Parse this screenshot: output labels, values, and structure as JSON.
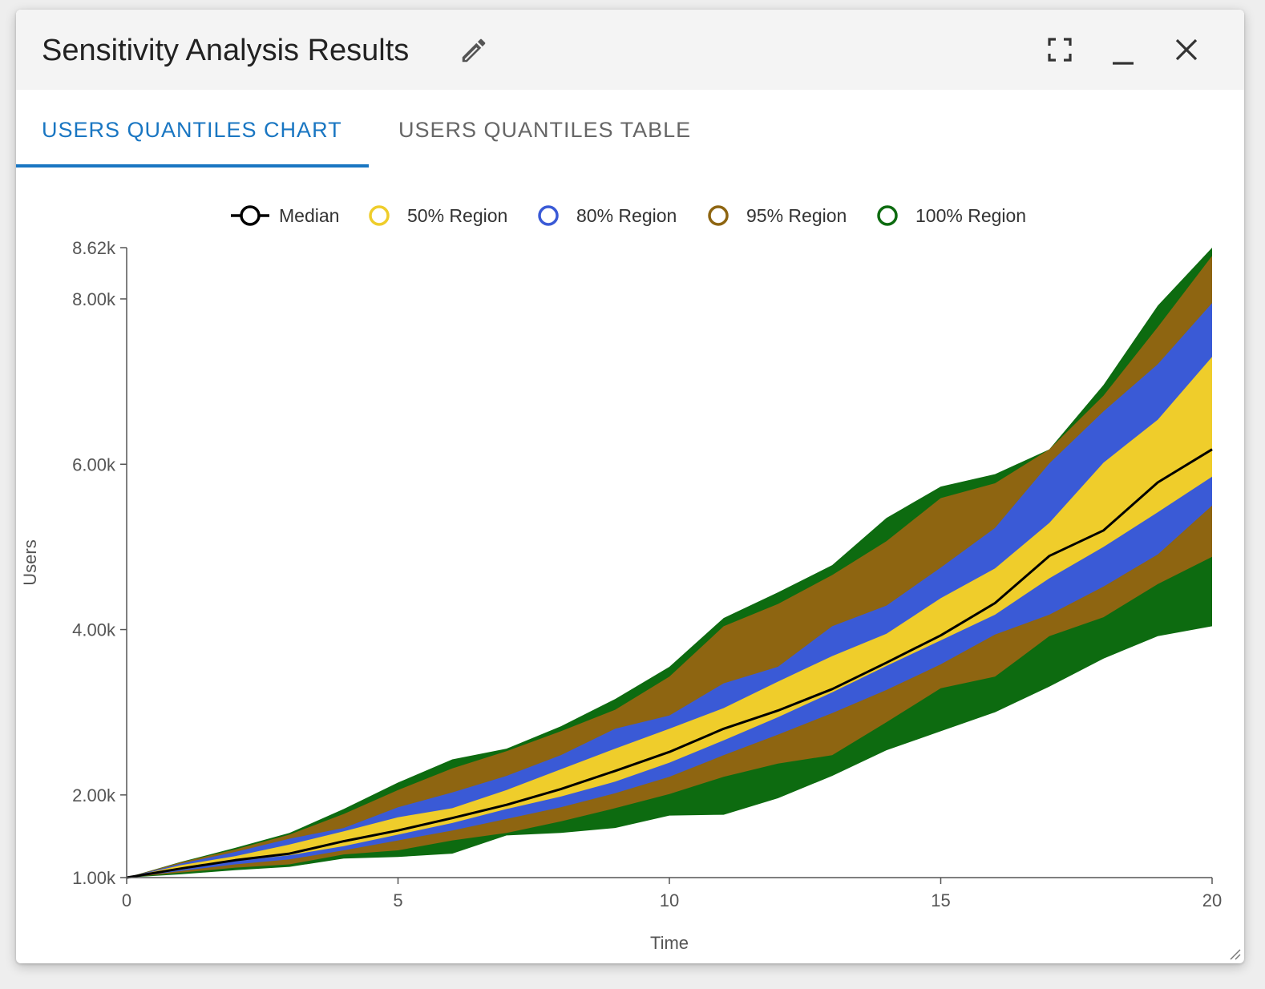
{
  "dialog": {
    "title": "Sensitivity Analysis Results",
    "icons": {
      "edit": "pencil-icon",
      "fullscreen": "fullscreen-icon",
      "minimize": "minimize-icon",
      "close": "close-icon",
      "resize": "resize-grip-icon"
    }
  },
  "tabs": [
    {
      "label": "USERS QUANTILES CHART",
      "active": true
    },
    {
      "label": "USERS QUANTILES TABLE",
      "active": false
    }
  ],
  "colors": {
    "accent": "#1976c2",
    "median": "#000000",
    "region50": "#efcd2b",
    "region80": "#3a5ad6",
    "region95": "#8e6511",
    "region100": "#0d6b10"
  },
  "chart_data": {
    "type": "area",
    "xlabel": "Time",
    "ylabel": "Users",
    "xlim": [
      0,
      20
    ],
    "ylim": [
      1000,
      8620
    ],
    "xticks": [
      0,
      5,
      10,
      15,
      20
    ],
    "yticks": [
      1000,
      2000,
      4000,
      6000,
      8000,
      8620
    ],
    "ytick_labels": [
      "1.00k",
      "2.00k",
      "4.00k",
      "6.00k",
      "8.00k",
      "8.62k"
    ],
    "grid": false,
    "legend_position": "top-center",
    "legend": [
      "Median",
      "50% Region",
      "80% Region",
      "95% Region",
      "100% Region"
    ],
    "x": [
      0,
      1,
      2,
      3,
      4,
      5,
      6,
      7,
      8,
      9,
      10,
      11,
      12,
      13,
      14,
      15,
      16,
      17,
      18,
      19,
      20
    ],
    "median": [
      1000,
      1110,
      1210,
      1290,
      1440,
      1570,
      1720,
      1880,
      2070,
      2290,
      2520,
      2800,
      3020,
      3280,
      3600,
      3930,
      4320,
      4890,
      5200,
      5780,
      6180
    ],
    "bands": [
      {
        "name": "100% Region",
        "lower": [
          1000,
          1040,
          1090,
          1130,
          1230,
          1250,
          1290,
          1510,
          1540,
          1600,
          1750,
          1760,
          1960,
          2230,
          2540,
          2770,
          3000,
          3310,
          3650,
          3920,
          4040
        ],
        "upper": [
          1000,
          1190,
          1360,
          1540,
          1830,
          2150,
          2430,
          2560,
          2830,
          3160,
          3550,
          4140,
          4450,
          4780,
          5350,
          5730,
          5880,
          6180,
          6960,
          7920,
          8620
        ]
      },
      {
        "name": "95% Region",
        "lower": [
          1000,
          1060,
          1120,
          1160,
          1280,
          1330,
          1450,
          1540,
          1680,
          1840,
          2010,
          2220,
          2380,
          2480,
          2880,
          3290,
          3430,
          3920,
          4150,
          4550,
          4880
        ]
      },
      {
        "name": "80% Region",
        "lower": [
          1000,
          1080,
          1160,
          1220,
          1330,
          1450,
          1570,
          1710,
          1850,
          2020,
          2220,
          2480,
          2730,
          2990,
          3270,
          3580,
          3940,
          4180,
          4520,
          4910,
          5500
        ],
        "upper": [
          1000,
          1170,
          1310,
          1470,
          1600,
          1850,
          2030,
          2230,
          2480,
          2800,
          2960,
          3350,
          3550,
          4040,
          4290,
          4750,
          5230,
          6010,
          6640,
          7210,
          7950
        ]
      },
      {
        "name": "50% Region",
        "lower": [
          1000,
          1095,
          1200,
          1270,
          1380,
          1520,
          1660,
          1830,
          1980,
          2160,
          2390,
          2660,
          2940,
          3240,
          3560,
          3870,
          4180,
          4620,
          5000,
          5420,
          5850
        ],
        "upper": [
          1000,
          1150,
          1260,
          1400,
          1560,
          1730,
          1840,
          2060,
          2310,
          2560,
          2800,
          3050,
          3370,
          3680,
          3950,
          4380,
          4740,
          5290,
          6020,
          6540,
          7300
        ]
      }
    ],
    "region95_upper": [
      1000,
      1185,
      1340,
      1520,
      1770,
      2060,
      2320,
      2530,
      2770,
      3030,
      3430,
      4040,
      4310,
      4660,
      5070,
      5590,
      5770,
      6180,
      6830,
      7660,
      8520
    ]
  }
}
